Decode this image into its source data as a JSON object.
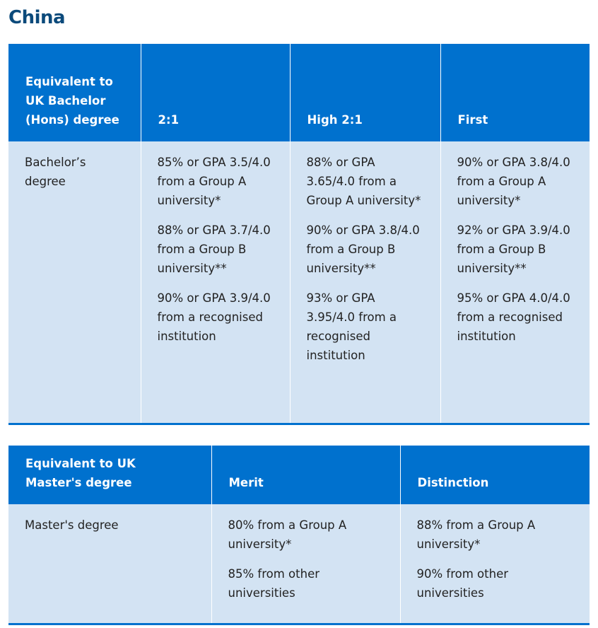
{
  "title": "China",
  "tables": [
    {
      "headers": [
        "Equivalent to UK Bachelor (Hons) degree",
        "2:1",
        "High 2:1",
        "First"
      ],
      "rows": [
        [
          [
            "Bachelor’s degree"
          ],
          [
            "85% or GPA 3.5/4.0 from a Group A university*",
            "88% or GPA 3.7/4.0 from a Group B university**",
            "90% or GPA 3.9/4.0 from a recognised institution"
          ],
          [
            "88% or GPA 3.65/4.0 from a Group A university*",
            "90% or GPA 3.8/4.0 from a Group B university**",
            "93% or GPA 3.95/4.0 from a recognised institution"
          ],
          [
            "90% or GPA 3.8/4.0 from a Group A university*",
            "92% or GPA 3.9/4.0 from a Group B university**",
            "95% or GPA 4.0/4.0 from a recognised institution"
          ]
        ]
      ]
    },
    {
      "headers": [
        "Equivalent to UK Master's degree",
        "Merit",
        "Distinction"
      ],
      "rows": [
        [
          [
            "Master's degree"
          ],
          [
            "80% from a Group A university*",
            "85% from other universities"
          ],
          [
            "88% from a Group A university*",
            "90% from other universities"
          ]
        ]
      ]
    }
  ]
}
